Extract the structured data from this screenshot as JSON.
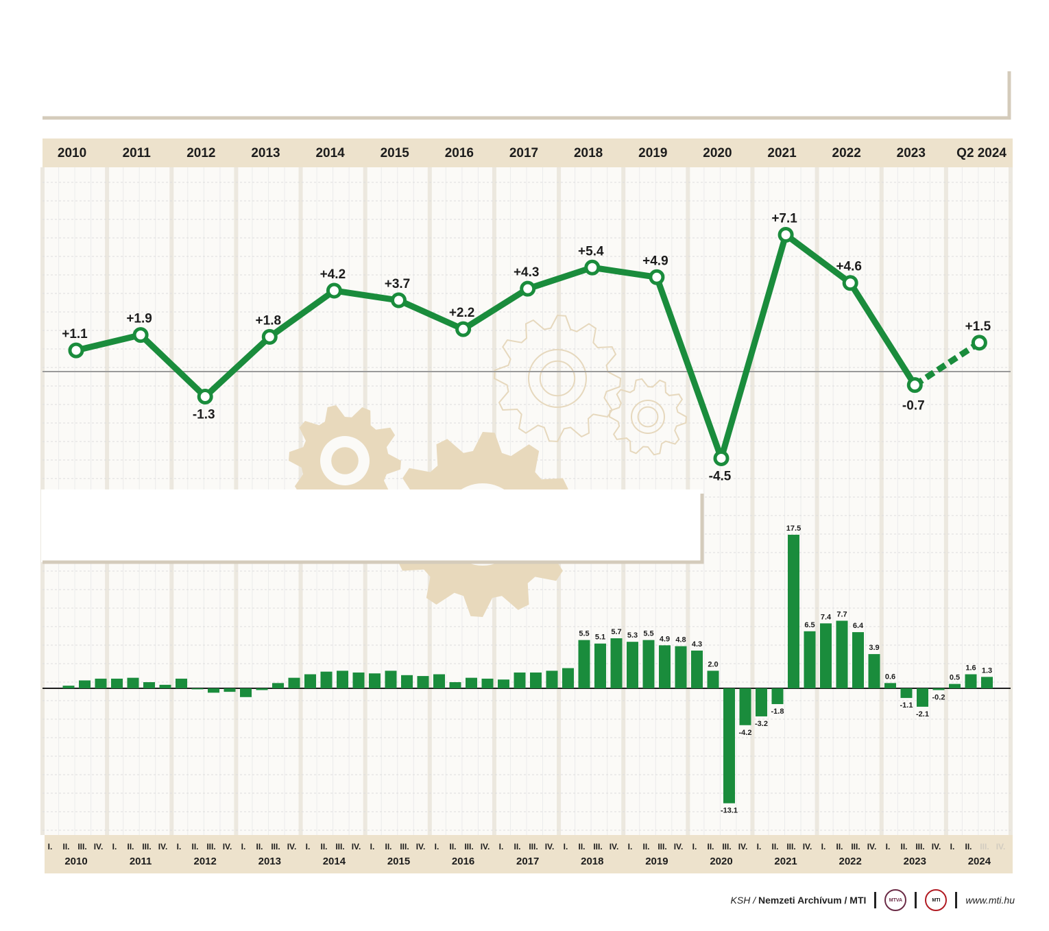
{
  "chart_data": [
    {
      "type": "line",
      "x": [
        "2010",
        "2011",
        "2012",
        "2013",
        "2014",
        "2015",
        "2016",
        "2017",
        "2018",
        "2019",
        "2020",
        "2021",
        "2022",
        "2023",
        "Q2 2024"
      ],
      "header_labels": [
        "2010",
        "2011",
        "2012",
        "2013",
        "2014",
        "2015",
        "2016",
        "2017",
        "2018",
        "2019",
        "2020",
        "2021",
        "2022",
        "2023",
        "Q2",
        "2024"
      ],
      "values": [
        1.1,
        1.9,
        -1.3,
        1.8,
        4.2,
        3.7,
        2.2,
        4.3,
        5.4,
        4.9,
        -4.5,
        7.1,
        4.6,
        -0.7,
        1.5
      ],
      "value_labels": [
        "+1.1",
        "+1.9",
        "-1.3",
        "+1.8",
        "+4.2",
        "+3.7",
        "+2.2",
        "+4.3",
        "+5.4",
        "+4.9",
        "-4.5",
        "+7.1",
        "+4.6",
        "-0.7",
        "+1.5"
      ],
      "last_segment_dashed": true,
      "color": "#1a8c3c",
      "zero_line": true,
      "grid": true
    },
    {
      "type": "bar",
      "years": [
        "2010",
        "2011",
        "2012",
        "2013",
        "2014",
        "2015",
        "2016",
        "2017",
        "2018",
        "2019",
        "2020",
        "2021",
        "2022",
        "2023",
        "2024"
      ],
      "quarter_labels": [
        "I.",
        "II.",
        "III.",
        "IV."
      ],
      "values": [
        0.3,
        0.9,
        1.1,
        1.1,
        1.2,
        0.7,
        0.4,
        1.1,
        -0.1,
        -0.5,
        -0.4,
        -1.0,
        -0.2,
        0.6,
        1.2,
        1.6,
        1.9,
        2.0,
        1.8,
        1.7,
        2.0,
        1.5,
        1.4,
        1.6,
        0.7,
        1.2,
        1.1,
        1.0,
        1.8,
        1.8,
        2.0,
        2.3,
        5.5,
        5.1,
        5.7,
        5.3,
        5.5,
        4.9,
        4.8,
        4.3,
        2.0,
        -13.1,
        -4.2,
        -3.2,
        -1.8,
        17.5,
        6.5,
        7.4,
        7.7,
        6.4,
        3.9,
        0.6,
        -1.1,
        -2.1,
        -0.2,
        0.5,
        1.6,
        1.3,
        null,
        null
      ],
      "value_labels": {
        "32": "5.5",
        "33": "5.1",
        "34": "5.7",
        "35": "5.3",
        "36": "5.5",
        "37": "4.9",
        "38": "4.8",
        "39": "4.3",
        "40": "2.0",
        "41": "-13.1",
        "42": "-4.2",
        "43": "-3.2",
        "44": "-1.8",
        "45": "17.5",
        "46": "6.5",
        "47": "7.4",
        "48": "7.7",
        "49": "6.4",
        "50": "3.9",
        "51": "0.6",
        "52": "-1.1",
        "53": "-2.1",
        "54": "-0.2",
        "55": "0.5",
        "56": "1.6",
        "57": "1.3"
      },
      "color": "#1a8c3c",
      "zero_line": true,
      "grid": true
    }
  ],
  "footer": {
    "source_italic": "KSH /",
    "source_bold": "Nemzeti Archívum / MTI",
    "logo_mtva": "MTVA",
    "logo_mti": "MTI",
    "url": "www.mti.hu"
  },
  "colors": {
    "green": "#1a8c3c",
    "beige": "#ede2cc",
    "gear": "#e8d9bc",
    "grid": "#dcdcdc"
  }
}
